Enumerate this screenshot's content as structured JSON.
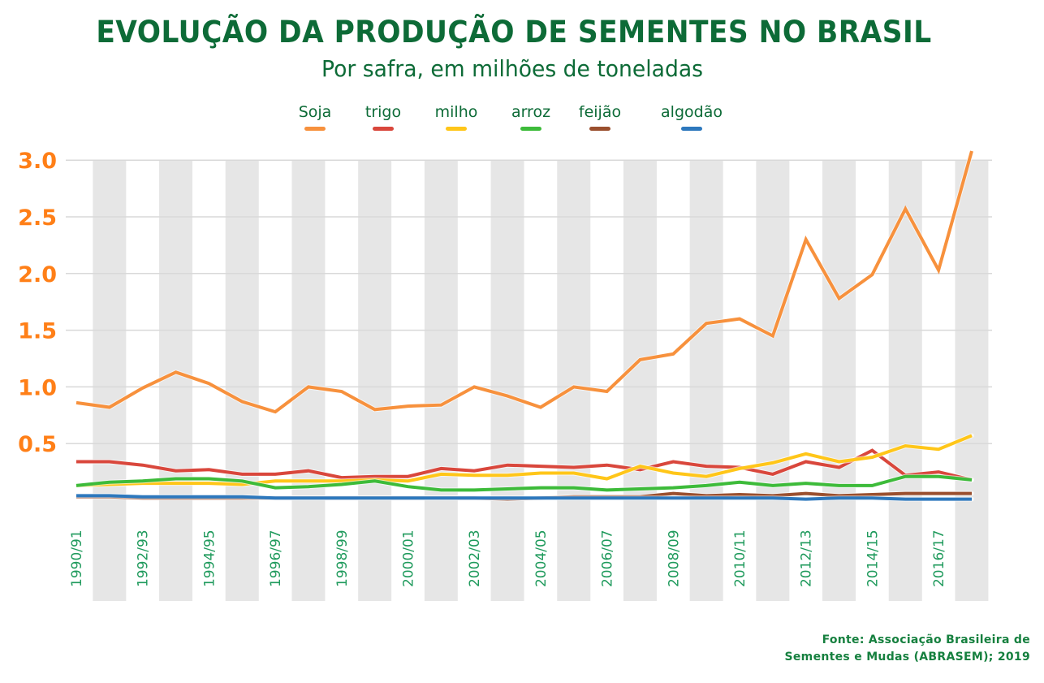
{
  "header": {
    "title": "EVOLUÇÃO DA PRODUÇÃO DE SEMENTES NO BRASIL",
    "subtitle": "Por safra, em milhões de toneladas"
  },
  "source": {
    "line1": "Fonte: Associação Brasileira de",
    "line2": "Sementes e Mudas (ABRASEM); 2019"
  },
  "chart_data": {
    "type": "line",
    "title": "EVOLUÇÃO DA PRODUÇÃO DE SEMENTES NO BRASIL",
    "subtitle": "Por safra, em milhões de toneladas",
    "xlabel": "",
    "ylabel": "",
    "ylim": [
      0,
      3.0
    ],
    "yticks": [
      "3.0",
      "2.5",
      "2.0",
      "1.5",
      "1.0",
      "0.5"
    ],
    "ytick_values": [
      3.0,
      2.5,
      2.0,
      1.5,
      1.0,
      0.5
    ],
    "grid": true,
    "legend_position": "top-center",
    "categories": [
      "1990/91",
      "1991/92",
      "1992/93",
      "1993/94",
      "1994/95",
      "1995/96",
      "1996/97",
      "1997/98",
      "1998/99",
      "1999/00",
      "2000/01",
      "2001/02",
      "2002/03",
      "2003/04",
      "2004/05",
      "2005/06",
      "2006/07",
      "2007/08",
      "2008/09",
      "2009/10",
      "2010/11",
      "2011/12",
      "2012/13",
      "2013/14",
      "2014/15",
      "2015/16",
      "2016/17",
      "2017/18"
    ],
    "xtick_labels": [
      "1990/91",
      "1992/93",
      "1994/95",
      "1996/97",
      "1998/99",
      "2000/01",
      "2002/03",
      "2004/05",
      "2006/07",
      "2008/09",
      "2010/11",
      "2012/13",
      "2014/15",
      "2016/17"
    ],
    "series": [
      {
        "name": "Soja",
        "color": "#f7913d",
        "values": [
          0.86,
          0.82,
          0.99,
          1.13,
          1.03,
          0.87,
          0.78,
          1.0,
          0.96,
          0.8,
          0.83,
          0.84,
          1.0,
          0.92,
          0.82,
          1.0,
          0.96,
          1.24,
          1.29,
          1.56,
          1.6,
          1.45,
          2.3,
          1.78,
          1.99,
          2.57,
          2.03,
          3.08
        ]
      },
      {
        "name": "trigo",
        "color": "#d9473c",
        "values": [
          0.34,
          0.34,
          0.31,
          0.26,
          0.27,
          0.23,
          0.23,
          0.26,
          0.2,
          0.21,
          0.21,
          0.28,
          0.26,
          0.31,
          0.3,
          0.29,
          0.31,
          0.27,
          0.34,
          0.3,
          0.29,
          0.23,
          0.34,
          0.29,
          0.44,
          0.22,
          0.25,
          0.18
        ]
      },
      {
        "name": "milho",
        "color": "#ffc619",
        "values": [
          0.13,
          0.14,
          0.15,
          0.15,
          0.15,
          0.14,
          0.17,
          0.17,
          0.17,
          0.18,
          0.17,
          0.23,
          0.22,
          0.22,
          0.24,
          0.24,
          0.19,
          0.3,
          0.24,
          0.21,
          0.28,
          0.33,
          0.41,
          0.34,
          0.38,
          0.48,
          0.45,
          0.57
        ]
      },
      {
        "name": "arroz",
        "color": "#3dbb3a",
        "values": [
          0.13,
          0.16,
          0.17,
          0.19,
          0.19,
          0.17,
          0.11,
          0.12,
          0.14,
          0.17,
          0.12,
          0.09,
          0.09,
          0.1,
          0.11,
          0.11,
          0.09,
          0.1,
          0.11,
          0.13,
          0.16,
          0.13,
          0.15,
          0.13,
          0.13,
          0.21,
          0.21,
          0.18
        ]
      },
      {
        "name": "feijão",
        "color": "#9a4f2e",
        "values": [
          0.03,
          0.03,
          0.02,
          0.02,
          0.02,
          0.02,
          0.02,
          0.02,
          0.02,
          0.02,
          0.02,
          0.02,
          0.02,
          0.01,
          0.02,
          0.03,
          0.03,
          0.03,
          0.06,
          0.04,
          0.05,
          0.04,
          0.06,
          0.04,
          0.05,
          0.06,
          0.06,
          0.06
        ]
      },
      {
        "name": "algodão",
        "color": "#2d78bd",
        "values": [
          0.04,
          0.04,
          0.03,
          0.03,
          0.03,
          0.03,
          0.02,
          0.02,
          0.02,
          0.02,
          0.02,
          0.02,
          0.02,
          0.02,
          0.02,
          0.02,
          0.02,
          0.02,
          0.02,
          0.02,
          0.02,
          0.02,
          0.01,
          0.02,
          0.02,
          0.01,
          0.01,
          0.01
        ]
      }
    ]
  }
}
